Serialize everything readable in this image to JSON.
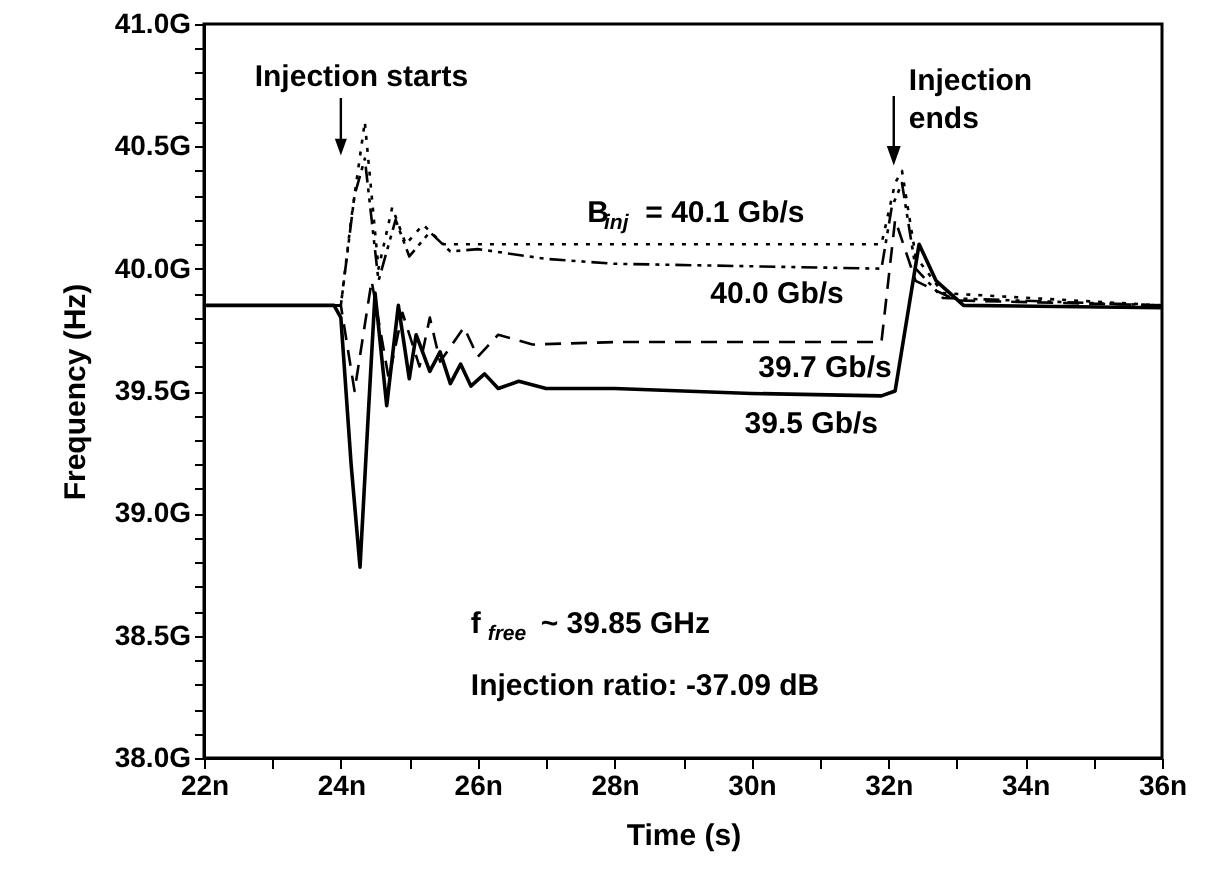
{
  "chart_data": {
    "type": "line",
    "xlabel": "Time (s)",
    "ylabel": "Frequency (Hz)",
    "xlim": [
      22,
      36
    ],
    "ylim": [
      38.0,
      41.0
    ],
    "xticks": [
      {
        "value": 22,
        "label": "22n"
      },
      {
        "value": 23,
        "label": null
      },
      {
        "value": 24,
        "label": "24n"
      },
      {
        "value": 25,
        "label": null
      },
      {
        "value": 26,
        "label": "26n"
      },
      {
        "value": 27,
        "label": null
      },
      {
        "value": 28,
        "label": "28n"
      },
      {
        "value": 29,
        "label": null
      },
      {
        "value": 30,
        "label": "30n"
      },
      {
        "value": 31,
        "label": null
      },
      {
        "value": 32,
        "label": "32n"
      },
      {
        "value": 33,
        "label": null
      },
      {
        "value": 34,
        "label": "34n"
      },
      {
        "value": 35,
        "label": null
      },
      {
        "value": 36,
        "label": "36n"
      }
    ],
    "yticks": [
      {
        "value": 38.0,
        "label": "38.0G"
      },
      {
        "value": 38.1,
        "label": null
      },
      {
        "value": 38.2,
        "label": null
      },
      {
        "value": 38.3,
        "label": null
      },
      {
        "value": 38.4,
        "label": null
      },
      {
        "value": 38.5,
        "label": "38.5G"
      },
      {
        "value": 38.6,
        "label": null
      },
      {
        "value": 38.7,
        "label": null
      },
      {
        "value": 38.8,
        "label": null
      },
      {
        "value": 38.9,
        "label": null
      },
      {
        "value": 39.0,
        "label": "39.0G"
      },
      {
        "value": 39.1,
        "label": null
      },
      {
        "value": 39.2,
        "label": null
      },
      {
        "value": 39.3,
        "label": null
      },
      {
        "value": 39.4,
        "label": null
      },
      {
        "value": 39.5,
        "label": "39.5G"
      },
      {
        "value": 39.6,
        "label": null
      },
      {
        "value": 39.7,
        "label": null
      },
      {
        "value": 39.8,
        "label": null
      },
      {
        "value": 39.9,
        "label": null
      },
      {
        "value": 40.0,
        "label": "40.0G"
      },
      {
        "value": 40.1,
        "label": null
      },
      {
        "value": 40.2,
        "label": null
      },
      {
        "value": 40.3,
        "label": null
      },
      {
        "value": 40.4,
        "label": null
      },
      {
        "value": 40.5,
        "label": "40.5G"
      },
      {
        "value": 40.6,
        "label": null
      },
      {
        "value": 40.7,
        "label": null
      },
      {
        "value": 40.8,
        "label": null
      },
      {
        "value": 40.9,
        "label": null
      },
      {
        "value": 41.0,
        "label": "41.0G"
      }
    ],
    "grid": false,
    "marker": "none",
    "series": [
      {
        "name": "B$_{inj}$ = 40.1 Gb/s",
        "color": "#000000",
        "line_style": "dotted",
        "x": [
          22,
          24.0,
          24.15,
          24.35,
          24.55,
          24.75,
          24.95,
          25.2,
          25.5,
          26,
          28,
          31.9,
          32.1,
          32.2,
          32.4,
          32.8,
          36
        ],
        "values": [
          39.85,
          39.85,
          40.2,
          40.6,
          40.0,
          40.25,
          40.1,
          40.18,
          40.1,
          40.1,
          40.1,
          40.1,
          40.35,
          40.4,
          40.05,
          39.9,
          39.85
        ]
      },
      {
        "name": "40.0 Gb/s",
        "color": "#000000",
        "line_style": "dashdot",
        "x": [
          22,
          24.0,
          24.2,
          24.35,
          24.55,
          24.8,
          25.0,
          25.3,
          25.6,
          26,
          27,
          28,
          31.9,
          32.05,
          32.2,
          32.4,
          32.8,
          36
        ],
        "values": [
          39.85,
          39.85,
          40.3,
          40.45,
          39.95,
          40.2,
          40.05,
          40.15,
          40.07,
          40.08,
          40.04,
          40.02,
          40.0,
          40.25,
          40.35,
          40.0,
          39.88,
          39.85
        ]
      },
      {
        "name": "39.7 Gb/s",
        "color": "#000000",
        "line_style": "dashed",
        "x": [
          22,
          24.0,
          24.2,
          24.45,
          24.7,
          24.9,
          25.15,
          25.3,
          25.45,
          25.8,
          26.0,
          26.3,
          26.8,
          28,
          31.9,
          32.1,
          32.4,
          33,
          36
        ],
        "values": [
          39.85,
          39.85,
          39.5,
          39.95,
          39.55,
          39.82,
          39.6,
          39.8,
          39.62,
          39.76,
          39.64,
          39.73,
          39.69,
          39.7,
          39.7,
          40.2,
          39.95,
          39.87,
          39.85
        ]
      },
      {
        "name": "39.5 Gb/s",
        "color": "#000000",
        "line_style": "solid",
        "x": [
          22,
          23.9,
          24.0,
          24.15,
          24.28,
          24.4,
          24.5,
          24.67,
          24.84,
          25.0,
          25.1,
          25.3,
          25.45,
          25.6,
          25.75,
          25.9,
          26.1,
          26.3,
          26.6,
          27,
          28,
          30,
          31.9,
          32.1,
          32.45,
          32.7,
          33.1,
          36
        ],
        "values": [
          39.85,
          39.85,
          39.8,
          39.2,
          38.78,
          39.4,
          39.9,
          39.44,
          39.85,
          39.55,
          39.73,
          39.58,
          39.66,
          39.53,
          39.61,
          39.52,
          39.57,
          39.51,
          39.54,
          39.51,
          39.51,
          39.49,
          39.48,
          39.5,
          40.1,
          39.95,
          39.85,
          39.84
        ]
      }
    ],
    "annotations": [
      "Injection starts",
      "Injection\nends",
      "f$_{free}$ ~ 39.85 GHz",
      "Injection ratio: -37.09 dB"
    ]
  }
}
